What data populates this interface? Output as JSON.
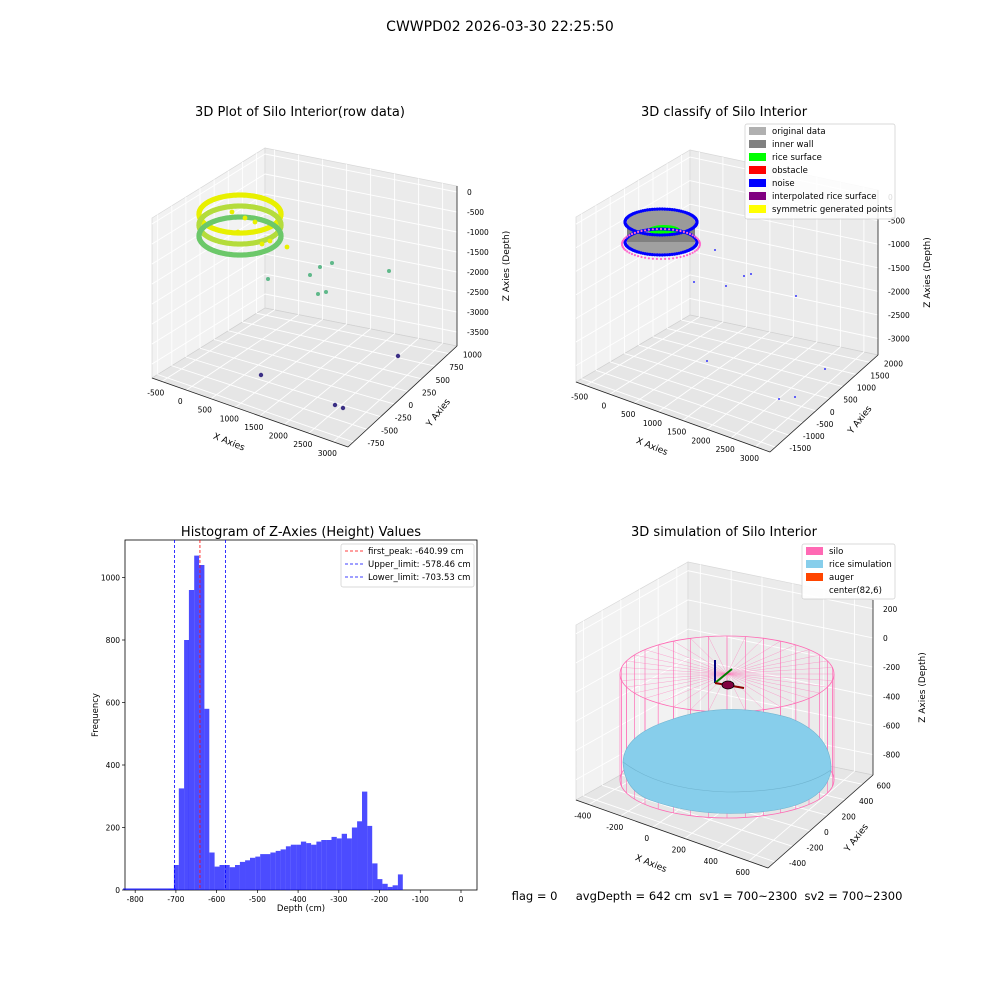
{
  "figure": {
    "suptitle": "CWWPD02 2026-03-30 22:25:50",
    "status_line": "flag = 0     avgDepth = 642 cm  sv1 = 700~2300  sv2 = 700~2300"
  },
  "colors": {
    "points_high": "#e8f000",
    "points_mid": "#6cc86a",
    "points_low": "#3b2f85",
    "inner_wall": "#808080",
    "rice_surface": "#00ff00",
    "noise": "#0000ff",
    "silo": "#ff69b4",
    "rice_simulation": "#87ceeb",
    "auger": "#ff4500",
    "hist_bar": "#0000ff",
    "first_peak_line": "#ff0000",
    "limit_line": "#0000ff"
  },
  "chart_data": [
    {
      "type": "scatter",
      "projection": "3d",
      "title": "3D Plot of Silo Interior(row data)",
      "xlabel": "X Axies",
      "ylabel": "Y Axies",
      "zlabel": "Z Axies (Depth)",
      "xticks": [
        "-500",
        "0",
        "500",
        "1000",
        "1500",
        "2000",
        "2500",
        "3000"
      ],
      "yticks": [
        "-750",
        "-500",
        "-250",
        "0",
        "250",
        "500",
        "750",
        "1000"
      ],
      "zticks": [
        "0",
        "-500",
        "-1000",
        "-1500",
        "-2000",
        "-2500",
        "-3000",
        "-3500"
      ],
      "grid": true
    },
    {
      "type": "scatter",
      "projection": "3d",
      "title": "3D classify of Silo Interior",
      "xlabel": "X Axies",
      "ylabel": "Y Axies",
      "zlabel": "Z Axies (Depth)",
      "xticks": [
        "-500",
        "0",
        "500",
        "1000",
        "1500",
        "2000",
        "2500",
        "3000"
      ],
      "yticks": [
        "-1500",
        "-1000",
        "-500",
        "0",
        "500",
        "1000",
        "1500",
        "2000"
      ],
      "zticks": [
        "0",
        "-500",
        "-1000",
        "-1500",
        "-2000",
        "-2500",
        "-3000"
      ],
      "legend": [
        {
          "label": "original data",
          "color": "#b0b0b0"
        },
        {
          "label": "inner wall",
          "color": "#808080"
        },
        {
          "label": "rice surface",
          "color": "#00ff00"
        },
        {
          "label": "obstacle",
          "color": "#ff0000"
        },
        {
          "label": "noise",
          "color": "#0000ff"
        },
        {
          "label": "interpolated rice surface",
          "color": "#800080"
        },
        {
          "label": "symmetric generated points",
          "color": "#ffff00"
        }
      ],
      "legend_position": "top-right",
      "grid": true
    },
    {
      "type": "bar",
      "title": "Histogram of Z-Axies (Height) Values",
      "xlabel": "Depth (cm)",
      "ylabel": "Frequency",
      "xlim": [
        -825,
        0
      ],
      "ylim": [
        0,
        1120
      ],
      "xticks": [
        -800,
        -700,
        -600,
        -500,
        -400,
        -300,
        -200,
        -100,
        0
      ],
      "yticks": [
        0,
        200,
        400,
        600,
        800,
        1000
      ],
      "bins": [
        [
          -830,
          -700,
          5
        ],
        [
          -718,
          -705,
          2
        ],
        [
          -705,
          -693,
          80
        ],
        [
          -693,
          -680,
          325
        ],
        [
          -680,
          -668,
          800
        ],
        [
          -668,
          -655,
          960
        ],
        [
          -655,
          -643,
          1070
        ],
        [
          -643,
          -630,
          1040
        ],
        [
          -630,
          -618,
          580
        ],
        [
          -618,
          -605,
          120
        ],
        [
          -605,
          -593,
          75
        ],
        [
          -593,
          -580,
          80
        ],
        [
          -580,
          -568,
          80
        ],
        [
          -568,
          -555,
          73
        ],
        [
          -555,
          -543,
          80
        ],
        [
          -543,
          -530,
          90
        ],
        [
          -530,
          -518,
          95
        ],
        [
          -518,
          -505,
          103
        ],
        [
          -505,
          -493,
          107
        ],
        [
          -493,
          -480,
          115
        ],
        [
          -480,
          -468,
          115
        ],
        [
          -468,
          -455,
          120
        ],
        [
          -455,
          -443,
          125
        ],
        [
          -443,
          -430,
          130
        ],
        [
          -430,
          -418,
          140
        ],
        [
          -418,
          -405,
          145
        ],
        [
          -405,
          -393,
          145
        ],
        [
          -393,
          -380,
          155
        ],
        [
          -380,
          -368,
          150
        ],
        [
          -368,
          -355,
          145
        ],
        [
          -355,
          -343,
          155
        ],
        [
          -343,
          -330,
          160
        ],
        [
          -330,
          -318,
          160
        ],
        [
          -318,
          -305,
          170
        ],
        [
          -305,
          -293,
          165
        ],
        [
          -293,
          -280,
          180
        ],
        [
          -280,
          -268,
          165
        ],
        [
          -268,
          -255,
          200
        ],
        [
          -255,
          -243,
          220
        ],
        [
          -243,
          -230,
          315
        ],
        [
          -230,
          -218,
          205
        ],
        [
          -218,
          -205,
          85
        ],
        [
          -205,
          -193,
          35
        ],
        [
          -193,
          -180,
          20
        ],
        [
          -180,
          -168,
          10
        ],
        [
          -168,
          -155,
          15
        ],
        [
          -155,
          -143,
          50
        ]
      ],
      "bar_color": "#0000ff",
      "bar_opacity": 0.7,
      "vlines": [
        {
          "x": -640.99,
          "color": "#ff0000",
          "label": "first_peak: -640.99 cm"
        },
        {
          "x": -578.46,
          "color": "#0000ff",
          "label": "Upper_limit: -578.46 cm"
        },
        {
          "x": -703.53,
          "color": "#0000ff",
          "label": "Lower_limit: -703.53 cm"
        }
      ],
      "legend_position": "top-right"
    },
    {
      "type": "scatter",
      "projection": "3d",
      "title": "3D simulation of Silo Interior",
      "xlabel": "X Axies",
      "ylabel": "Y Axies",
      "zlabel": "Z Axies (Depth)",
      "xticks": [
        "-400",
        "-200",
        "0",
        "200",
        "400",
        "600"
      ],
      "yticks": [
        "-400",
        "-200",
        "0",
        "200",
        "400",
        "600"
      ],
      "zticks": [
        "200",
        "0",
        "-200",
        "-400",
        "-600",
        "-800"
      ],
      "legend": [
        {
          "label": "silo",
          "color": "#ff69b4"
        },
        {
          "label": "rice simulation",
          "color": "#87ceeb"
        },
        {
          "label": "auger",
          "color": "#ff4500"
        },
        {
          "label": "center(82,6)",
          "color": ""
        }
      ],
      "legend_position": "top-right",
      "grid": true
    }
  ]
}
